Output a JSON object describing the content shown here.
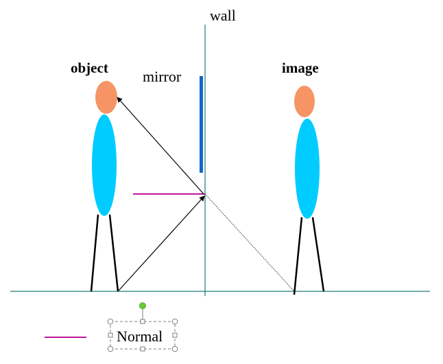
{
  "labels": {
    "wall": "wall",
    "mirror": "mirror",
    "object": "object",
    "image": "image",
    "legend_normal": "Normal"
  },
  "colors": {
    "head": "#F79465",
    "body": "#00CCFF",
    "mirror": "#1565C8",
    "normal": "#C0169C",
    "wall_line": "#1E7A7A",
    "ground_line": "#1E7A7A",
    "ray": "#000000",
    "legs": "#000000",
    "selection_handle": "#7C7C7C",
    "rotate_handle": "#66CC33"
  },
  "icons": {
    "selection_box": "text-selection-frame",
    "rotate_handle": "green-rotate-handle-dot"
  }
}
